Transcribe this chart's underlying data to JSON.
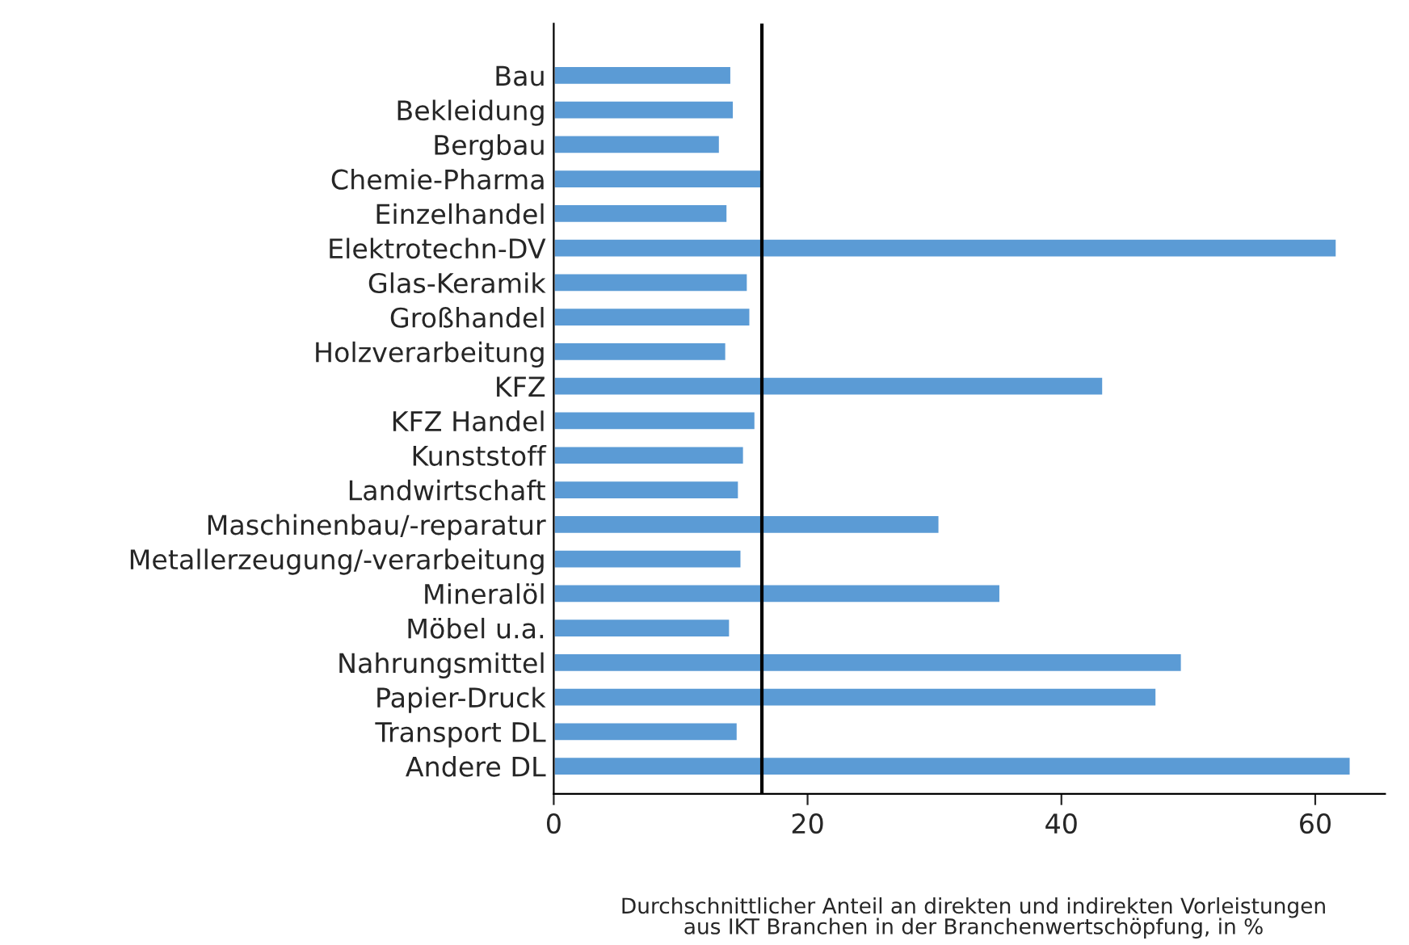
{
  "chart_data": {
    "type": "bar",
    "orientation": "horizontal",
    "categories": [
      "Bau",
      "Bekleidung",
      "Bergbau",
      "Chemie-Pharma",
      "Einzelhandel",
      "Elektrotechn-DV",
      "Glas-Keramik",
      "Großhandel",
      "Holzverarbeitung",
      "KFZ",
      "KFZ Handel",
      "Kunststoff",
      "Landwirtschaft",
      "Maschinenbau/-reparatur",
      "Metallerzeugung/-verarbeitung",
      "Mineralöl",
      "Möbel u.a.",
      "Nahrungsmittel",
      "Papier-Druck",
      "Transport DL",
      "Andere DL"
    ],
    "values": [
      14.0,
      14.2,
      13.1,
      16.5,
      13.7,
      61.7,
      15.3,
      15.5,
      13.6,
      43.3,
      15.9,
      15.0,
      14.6,
      30.4,
      14.8,
      35.2,
      13.9,
      49.5,
      47.5,
      14.5,
      62.8
    ],
    "color": "#5b9bd5",
    "xlim": [
      0,
      65.5
    ],
    "xticks": [
      0,
      20,
      40,
      60
    ],
    "xlabel": "Durchschnittlicher Anteil an direkten und indirekten Vorleistungen\naus IKT Branchen in der Branchenwertschöpfung, in %",
    "ref_lines": [
      {
        "axis": "x",
        "value": 16.4,
        "color": "#000000"
      }
    ],
    "grid": false
  }
}
